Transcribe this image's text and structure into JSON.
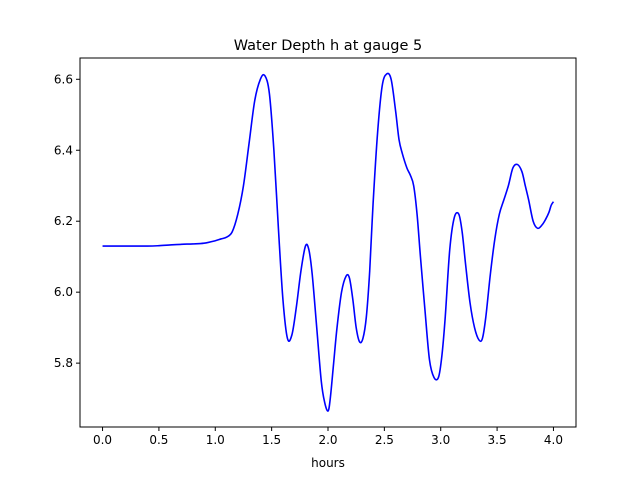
{
  "chart_data": {
    "type": "line",
    "title": "Water Depth h at gauge 5",
    "xlabel": "hours",
    "ylabel": "",
    "xlim": [
      -0.2,
      4.2
    ],
    "ylim": [
      5.62,
      6.66
    ],
    "xticks": [
      0.0,
      0.5,
      1.0,
      1.5,
      2.0,
      2.5,
      3.0,
      3.5,
      4.0
    ],
    "xtick_labels": [
      "0.0",
      "0.5",
      "1.0",
      "1.5",
      "2.0",
      "2.5",
      "3.0",
      "3.5",
      "4.0"
    ],
    "yticks": [
      5.8,
      6.0,
      6.2,
      6.4,
      6.6
    ],
    "ytick_labels": [
      "5.8",
      "6.0",
      "6.2",
      "6.4",
      "6.6"
    ],
    "grid": false,
    "series": [
      {
        "color": "#0000ff",
        "x": [
          0.0,
          0.2,
          0.4,
          0.5,
          0.6,
          0.7,
          0.8,
          0.9,
          1.0,
          1.05,
          1.1,
          1.15,
          1.2,
          1.25,
          1.3,
          1.35,
          1.4,
          1.44,
          1.48,
          1.52,
          1.56,
          1.6,
          1.64,
          1.68,
          1.72,
          1.76,
          1.8,
          1.83,
          1.86,
          1.9,
          1.94,
          1.97,
          2.0,
          2.02,
          2.05,
          2.08,
          2.12,
          2.16,
          2.19,
          2.22,
          2.25,
          2.28,
          2.31,
          2.34,
          2.37,
          2.4,
          2.44,
          2.48,
          2.52,
          2.56,
          2.6,
          2.63,
          2.66,
          2.7,
          2.73,
          2.76,
          2.79,
          2.82,
          2.86,
          2.9,
          2.94,
          2.98,
          3.01,
          3.04,
          3.08,
          3.12,
          3.16,
          3.19,
          3.22,
          3.26,
          3.3,
          3.34,
          3.37,
          3.4,
          3.44,
          3.48,
          3.52,
          3.56,
          3.6,
          3.64,
          3.68,
          3.72,
          3.75,
          3.78,
          3.82,
          3.86,
          3.9,
          3.93,
          3.96,
          3.98,
          4.0
        ],
        "values": [
          6.13,
          6.13,
          6.13,
          6.131,
          6.133,
          6.135,
          6.136,
          6.138,
          6.145,
          6.15,
          6.155,
          6.17,
          6.22,
          6.3,
          6.42,
          6.54,
          6.6,
          6.61,
          6.56,
          6.4,
          6.18,
          5.98,
          5.87,
          5.88,
          5.96,
          6.06,
          6.13,
          6.12,
          6.05,
          5.9,
          5.75,
          5.69,
          5.665,
          5.7,
          5.8,
          5.9,
          6.0,
          6.045,
          6.04,
          5.98,
          5.9,
          5.86,
          5.87,
          5.93,
          6.06,
          6.25,
          6.45,
          6.58,
          6.615,
          6.6,
          6.51,
          6.43,
          6.39,
          6.35,
          6.33,
          6.3,
          6.22,
          6.1,
          5.95,
          5.81,
          5.76,
          5.76,
          5.82,
          5.93,
          6.12,
          6.21,
          6.22,
          6.17,
          6.08,
          5.97,
          5.9,
          5.865,
          5.87,
          5.93,
          6.05,
          6.15,
          6.22,
          6.26,
          6.3,
          6.35,
          6.36,
          6.34,
          6.3,
          6.26,
          6.2,
          6.18,
          6.19,
          6.205,
          6.225,
          6.245,
          6.255
        ]
      }
    ]
  }
}
